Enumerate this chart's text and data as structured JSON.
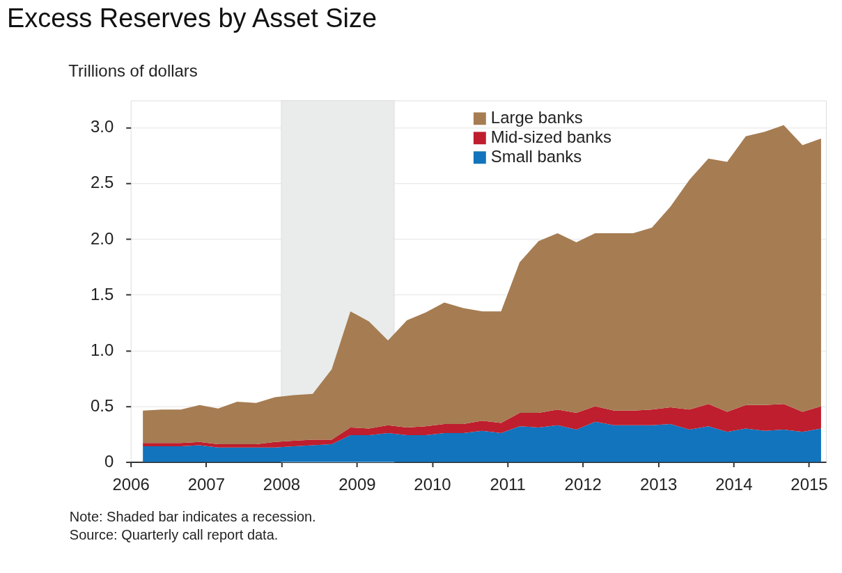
{
  "chart_data": {
    "type": "area",
    "title": "Excess Reserves by Asset Size",
    "ylabel": "Trillions of dollars",
    "x": [
      "2006-03",
      "2006-06",
      "2006-09",
      "2006-12",
      "2007-03",
      "2007-06",
      "2007-09",
      "2007-12",
      "2008-03",
      "2008-06",
      "2008-09",
      "2008-12",
      "2009-03",
      "2009-06",
      "2009-09",
      "2009-12",
      "2010-03",
      "2010-06",
      "2010-09",
      "2010-12",
      "2011-03",
      "2011-06",
      "2011-09",
      "2011-12",
      "2012-03",
      "2012-06",
      "2012-09",
      "2012-12",
      "2013-03",
      "2013-06",
      "2013-09",
      "2013-12",
      "2014-03",
      "2014-06",
      "2014-09",
      "2014-12",
      "2015-03"
    ],
    "stacked": true,
    "series": [
      {
        "name": "Small banks",
        "color": "#1174bd",
        "values": [
          0.14,
          0.14,
          0.14,
          0.15,
          0.13,
          0.13,
          0.13,
          0.13,
          0.14,
          0.15,
          0.16,
          0.24,
          0.24,
          0.26,
          0.24,
          0.24,
          0.26,
          0.26,
          0.28,
          0.26,
          0.32,
          0.31,
          0.33,
          0.29,
          0.36,
          0.33,
          0.33,
          0.33,
          0.34,
          0.29,
          0.32,
          0.27,
          0.3,
          0.28,
          0.29,
          0.27,
          0.3
        ]
      },
      {
        "name": "Mid-sized banks",
        "color": "#be1e2d",
        "values": [
          0.03,
          0.03,
          0.03,
          0.03,
          0.03,
          0.03,
          0.03,
          0.05,
          0.05,
          0.05,
          0.04,
          0.07,
          0.06,
          0.07,
          0.07,
          0.08,
          0.08,
          0.08,
          0.09,
          0.09,
          0.12,
          0.13,
          0.14,
          0.15,
          0.14,
          0.13,
          0.13,
          0.14,
          0.15,
          0.18,
          0.2,
          0.18,
          0.21,
          0.23,
          0.23,
          0.18,
          0.2
        ]
      },
      {
        "name": "Large banks",
        "color": "#a67c52",
        "values": [
          0.29,
          0.3,
          0.3,
          0.33,
          0.32,
          0.38,
          0.37,
          0.4,
          0.41,
          0.41,
          0.63,
          1.04,
          0.96,
          0.76,
          0.96,
          1.02,
          1.09,
          1.04,
          0.98,
          1.0,
          1.35,
          1.54,
          1.58,
          1.53,
          1.55,
          1.59,
          1.59,
          1.63,
          1.8,
          2.06,
          2.2,
          2.24,
          2.41,
          2.45,
          2.5,
          2.39,
          2.4
        ]
      }
    ],
    "xlim": [
      "2006-01-01",
      "2015-03-25"
    ],
    "xticks": [
      {
        "value": "2006",
        "label": "2006"
      },
      {
        "value": "2007",
        "label": "2007"
      },
      {
        "value": "2008",
        "label": "2008"
      },
      {
        "value": "2009",
        "label": "2009"
      },
      {
        "value": "2010",
        "label": "2010"
      },
      {
        "value": "2011",
        "label": "2011"
      },
      {
        "value": "2012",
        "label": "2012"
      },
      {
        "value": "2013",
        "label": "2013"
      },
      {
        "value": "2014",
        "label": "2014"
      },
      {
        "value": "2015",
        "label": "2015"
      }
    ],
    "ylim": [
      0,
      3.24
    ],
    "yticks": [
      0,
      0.5,
      {
        "value": 1,
        "label": "1.0"
      },
      1.5,
      {
        "value": 2,
        "label": "2.0"
      },
      2.5,
      {
        "value": 3,
        "label": "3.0"
      }
    ],
    "bands": [
      {
        "axis": "x",
        "from": "2008-01",
        "to": "2009-07",
        "color": "#eaeceb"
      }
    ],
    "grid": "y",
    "legend": "top right",
    "annotations": [
      "Note: Shaded bar indicates a recession.",
      "Source: Quarterly call report data."
    ]
  }
}
